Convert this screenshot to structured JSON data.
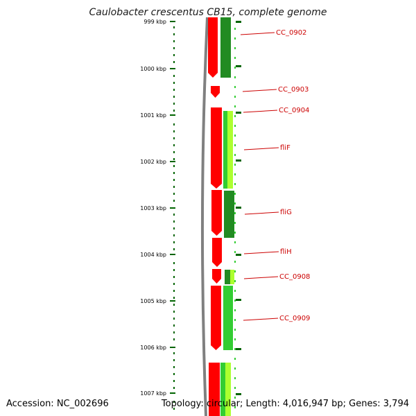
{
  "title": "Caulobacter crescentus CB15, complete genome",
  "footer": {
    "accession": "Accession: NC_002696",
    "topology": "Topology: circular; Length: 4,016,947 bp; Genes: 3,794"
  },
  "colors": {
    "axis": "#006400",
    "label": "#cc0000",
    "backbone": "#808080",
    "strand_primary": "#ff0000",
    "gene_dark_green": "#228b22",
    "gene_green": "#32cd32",
    "gene_yellow_green": "#adff2f"
  },
  "ruler_labels": [
    "999 kbp",
    "1000 kbp",
    "1001 kbp",
    "1002 kbp",
    "1003 kbp",
    "1004 kbp",
    "1005 kbp",
    "1006 kbp",
    "1007 kbp"
  ],
  "genes": [
    {
      "name": "CC_0902",
      "strand": "+"
    },
    {
      "name": "CC_0903",
      "strand": "+"
    },
    {
      "name": "CC_0904",
      "strand": "+"
    },
    {
      "name": "fliF",
      "strand": "+"
    },
    {
      "name": "fliG",
      "strand": "+"
    },
    {
      "name": "fliH",
      "strand": "+"
    },
    {
      "name": "CC_0908",
      "strand": "+"
    },
    {
      "name": "CC_0909",
      "strand": "+"
    }
  ]
}
